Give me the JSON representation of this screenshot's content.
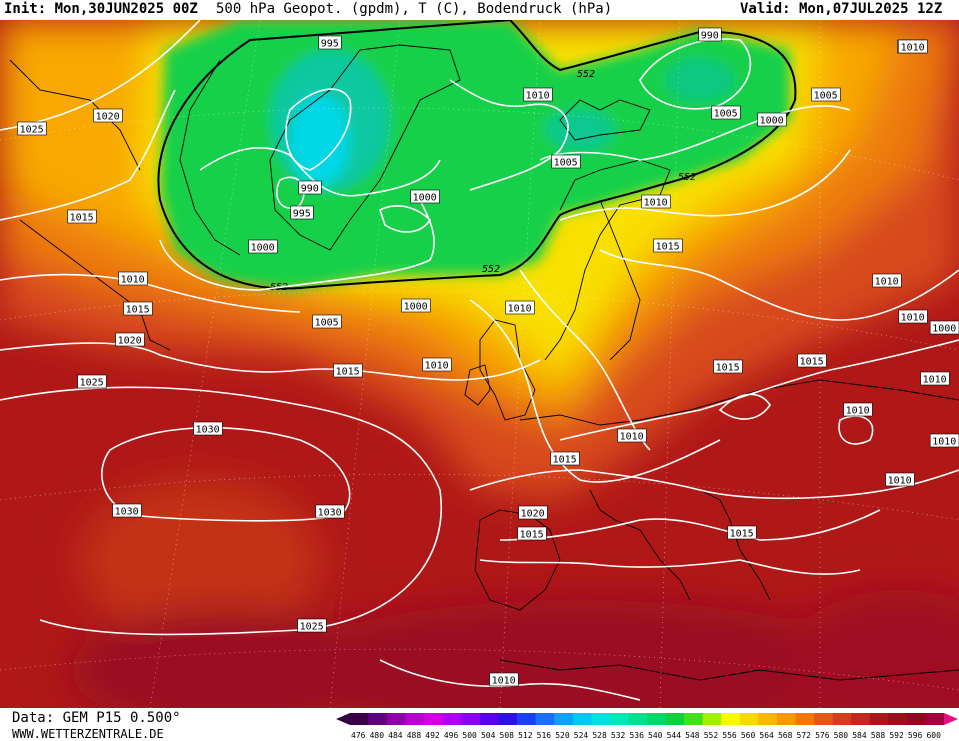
{
  "header": {
    "init": "Init: Mon,30JUN2025 00Z",
    "title": "500 hPa Geopot. (gpdm), T (C), Bodendruck (hPa)",
    "valid": "Valid: Mon,07JUL2025 12Z"
  },
  "footer": {
    "data_source": "Data: GEM P15 0.500°",
    "website": "WWW.WETTERZENTRALE.DE"
  },
  "legend": {
    "values": [
      "476",
      "480",
      "484",
      "488",
      "492",
      "496",
      "500",
      "504",
      "508",
      "512",
      "516",
      "520",
      "524",
      "528",
      "532",
      "536",
      "540",
      "544",
      "548",
      "552",
      "556",
      "560",
      "564",
      "568",
      "572",
      "576",
      "580",
      "584",
      "588",
      "592",
      "596",
      "600"
    ],
    "colors": [
      "#3a0048",
      "#60007a",
      "#8c00a8",
      "#b400c8",
      "#d200e0",
      "#b000f0",
      "#8800f0",
      "#5a00e8",
      "#2c10e0",
      "#1a40f0",
      "#1a70f8",
      "#10a0f8",
      "#00c8f0",
      "#00e0e0",
      "#00e8b8",
      "#00e090",
      "#00d868",
      "#10d040",
      "#40e020",
      "#a0f000",
      "#f8f800",
      "#f8d800",
      "#f8b800",
      "#f89800",
      "#f07800",
      "#e05818",
      "#d04020",
      "#c02820",
      "#a81818",
      "#981018",
      "#900820",
      "#a00040"
    ],
    "end_colors": {
      "low": "#300040",
      "high": "#e01080"
    }
  },
  "map": {
    "contour_552_label": "552",
    "isobar_labels": [
      "995",
      "990",
      "1010",
      "1020",
      "1025",
      "1015",
      "1010",
      "1015",
      "1020",
      "1025",
      "1030",
      "1030",
      "1030",
      "1025",
      "1000",
      "990",
      "995",
      "1000",
      "1000",
      "1005",
      "1005",
      "1010",
      "1015",
      "1010",
      "1005",
      "1000",
      "1005",
      "1010",
      "1015",
      "1010",
      "1015",
      "1010",
      "1015",
      "1010",
      "1015",
      "1020",
      "1015",
      "1015",
      "1010",
      "1010",
      "1010",
      "1010",
      "1000",
      "1010",
      "1010",
      "1010"
    ]
  }
}
